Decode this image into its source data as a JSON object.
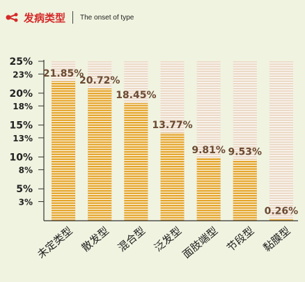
{
  "header": {
    "title_cn": "发病类型",
    "title_en": "The onset of type"
  },
  "colors": {
    "bar_fill": "#e4a52a",
    "bar_bg": "#ebd9c6",
    "stripe": "#ffffff",
    "value_text": "#6b4a33",
    "header_red": "#d42a2a"
  },
  "chart_data": {
    "type": "bar",
    "categories": [
      "未定类型",
      "散发型",
      "混合型",
      "泛发型",
      "面肢端型",
      "节段型",
      "黏膜型"
    ],
    "values": [
      21.85,
      20.72,
      18.45,
      13.77,
      9.81,
      9.53,
      0.26
    ],
    "value_labels": [
      "21.85%",
      "20.72%",
      "18.45%",
      "13.77%",
      "9.81%",
      "9.53%",
      "0.26%"
    ],
    "ylim": [
      0,
      25
    ],
    "yticks": [
      {
        "value": 25,
        "label": "25%",
        "major": true
      },
      {
        "value": 23,
        "label": "23%",
        "major": false
      },
      {
        "value": 20,
        "label": "20%",
        "major": true
      },
      {
        "value": 18,
        "label": "18%",
        "major": false
      },
      {
        "value": 15,
        "label": "15%",
        "major": true
      },
      {
        "value": 13,
        "label": "13%",
        "major": false
      },
      {
        "value": 10,
        "label": "10%",
        "major": true
      },
      {
        "value": 8,
        "label": "8%",
        "major": false
      },
      {
        "value": 5,
        "label": "5%",
        "major": true
      },
      {
        "value": 3,
        "label": "3%",
        "major": false
      }
    ],
    "xlabel": "",
    "ylabel": "",
    "grid": false
  }
}
